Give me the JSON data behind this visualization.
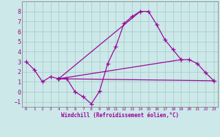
{
  "xlabel": "Windchill (Refroidissement éolien,°C)",
  "xlim": [
    -0.5,
    23.5
  ],
  "ylim": [
    -1.5,
    9.0
  ],
  "yticks": [
    -1,
    0,
    1,
    2,
    3,
    4,
    5,
    6,
    7,
    8
  ],
  "xticks": [
    0,
    1,
    2,
    3,
    4,
    5,
    6,
    7,
    8,
    9,
    10,
    11,
    12,
    13,
    14,
    15,
    16,
    17,
    18,
    19,
    20,
    21,
    22,
    23
  ],
  "bg_color": "#cce8e8",
  "grid_color": "#aacccc",
  "line_color": "#990099",
  "lines": [
    {
      "x": [
        0,
        1,
        2,
        3,
        4,
        5,
        6,
        7,
        8,
        9,
        10,
        11,
        12,
        13,
        14,
        15,
        16,
        17,
        18,
        19,
        20,
        21,
        22,
        23
      ],
      "y": [
        3.0,
        2.2,
        1.0,
        1.5,
        1.3,
        1.3,
        0.0,
        -0.5,
        -1.2,
        0.05,
        2.8,
        4.5,
        6.8,
        7.5,
        8.0,
        8.0,
        6.7,
        5.2,
        4.2,
        3.2,
        3.2,
        2.8,
        1.9,
        1.1
      ]
    },
    {
      "x": [
        4,
        23
      ],
      "y": [
        1.3,
        1.1
      ]
    },
    {
      "x": [
        4,
        14
      ],
      "y": [
        1.3,
        8.0
      ]
    },
    {
      "x": [
        4,
        19
      ],
      "y": [
        1.3,
        3.2
      ]
    }
  ]
}
